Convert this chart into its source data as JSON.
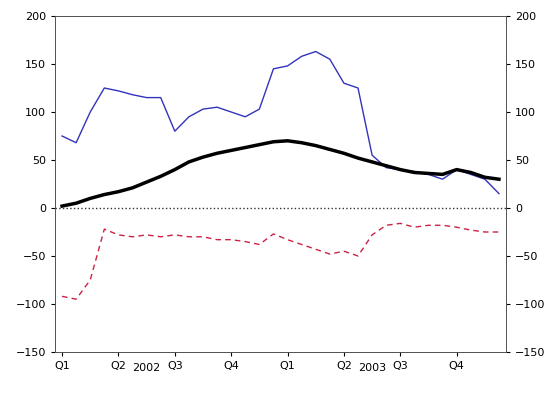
{
  "ylim": [
    -150,
    200
  ],
  "yticks": [
    -150,
    -100,
    -50,
    0,
    50,
    100,
    150,
    200
  ],
  "blue_line": {
    "color": "#3333bb",
    "linewidth": 1.0,
    "x": [
      0,
      1,
      2,
      3,
      4,
      5,
      6,
      7,
      8,
      9,
      10,
      11,
      12,
      13,
      14,
      15,
      16,
      17,
      18,
      19,
      20,
      21,
      22,
      23,
      24,
      25,
      26,
      27,
      28,
      29,
      30,
      31
    ],
    "y": [
      75,
      68,
      100,
      125,
      122,
      118,
      115,
      115,
      80,
      95,
      103,
      105,
      100,
      95,
      103,
      145,
      148,
      158,
      163,
      155,
      130,
      125,
      55,
      42,
      40,
      38,
      35,
      30,
      40,
      35,
      30,
      15
    ]
  },
  "black_line": {
    "color": "#000000",
    "linewidth": 2.5,
    "x": [
      0,
      1,
      2,
      3,
      4,
      5,
      6,
      7,
      8,
      9,
      10,
      11,
      12,
      13,
      14,
      15,
      16,
      17,
      18,
      19,
      20,
      21,
      22,
      23,
      24,
      25,
      26,
      27,
      28,
      29,
      30,
      31
    ],
    "y": [
      2,
      5,
      10,
      14,
      17,
      21,
      27,
      33,
      40,
      48,
      53,
      57,
      60,
      63,
      66,
      69,
      70,
      68,
      65,
      61,
      57,
      52,
      48,
      44,
      40,
      37,
      36,
      35,
      40,
      37,
      32,
      30
    ]
  },
  "red_line": {
    "color": "#cc2244",
    "linewidth": 1.0,
    "linestyle": "dashed",
    "x": [
      0,
      1,
      2,
      3,
      4,
      5,
      6,
      7,
      8,
      9,
      10,
      11,
      12,
      13,
      14,
      15,
      16,
      17,
      18,
      19,
      20,
      21,
      22,
      23,
      24,
      25,
      26,
      27,
      28,
      29,
      30,
      31
    ],
    "y": [
      -92,
      -95,
      -75,
      -22,
      -28,
      -30,
      -28,
      -30,
      -28,
      -30,
      -30,
      -33,
      -33,
      -35,
      -38,
      -27,
      -33,
      -38,
      -43,
      -48,
      -45,
      -50,
      -28,
      -18,
      -16,
      -20,
      -18,
      -18,
      -20,
      -23,
      -25,
      -25
    ]
  },
  "zero_line_color": "#333333",
  "background_color": "#ffffff",
  "tick_fontsize": 8,
  "quarter_ticks": [
    0,
    4,
    8,
    12,
    16,
    20,
    24,
    28
  ],
  "quarter_labels": [
    "Q1",
    "Q2",
    "Q3",
    "Q4",
    "Q1",
    "Q2",
    "Q3",
    "Q4"
  ],
  "year_2002_x": 6,
  "year_2003_x": 22,
  "year_fontsize": 8,
  "xlim": [
    -0.5,
    31.5
  ]
}
